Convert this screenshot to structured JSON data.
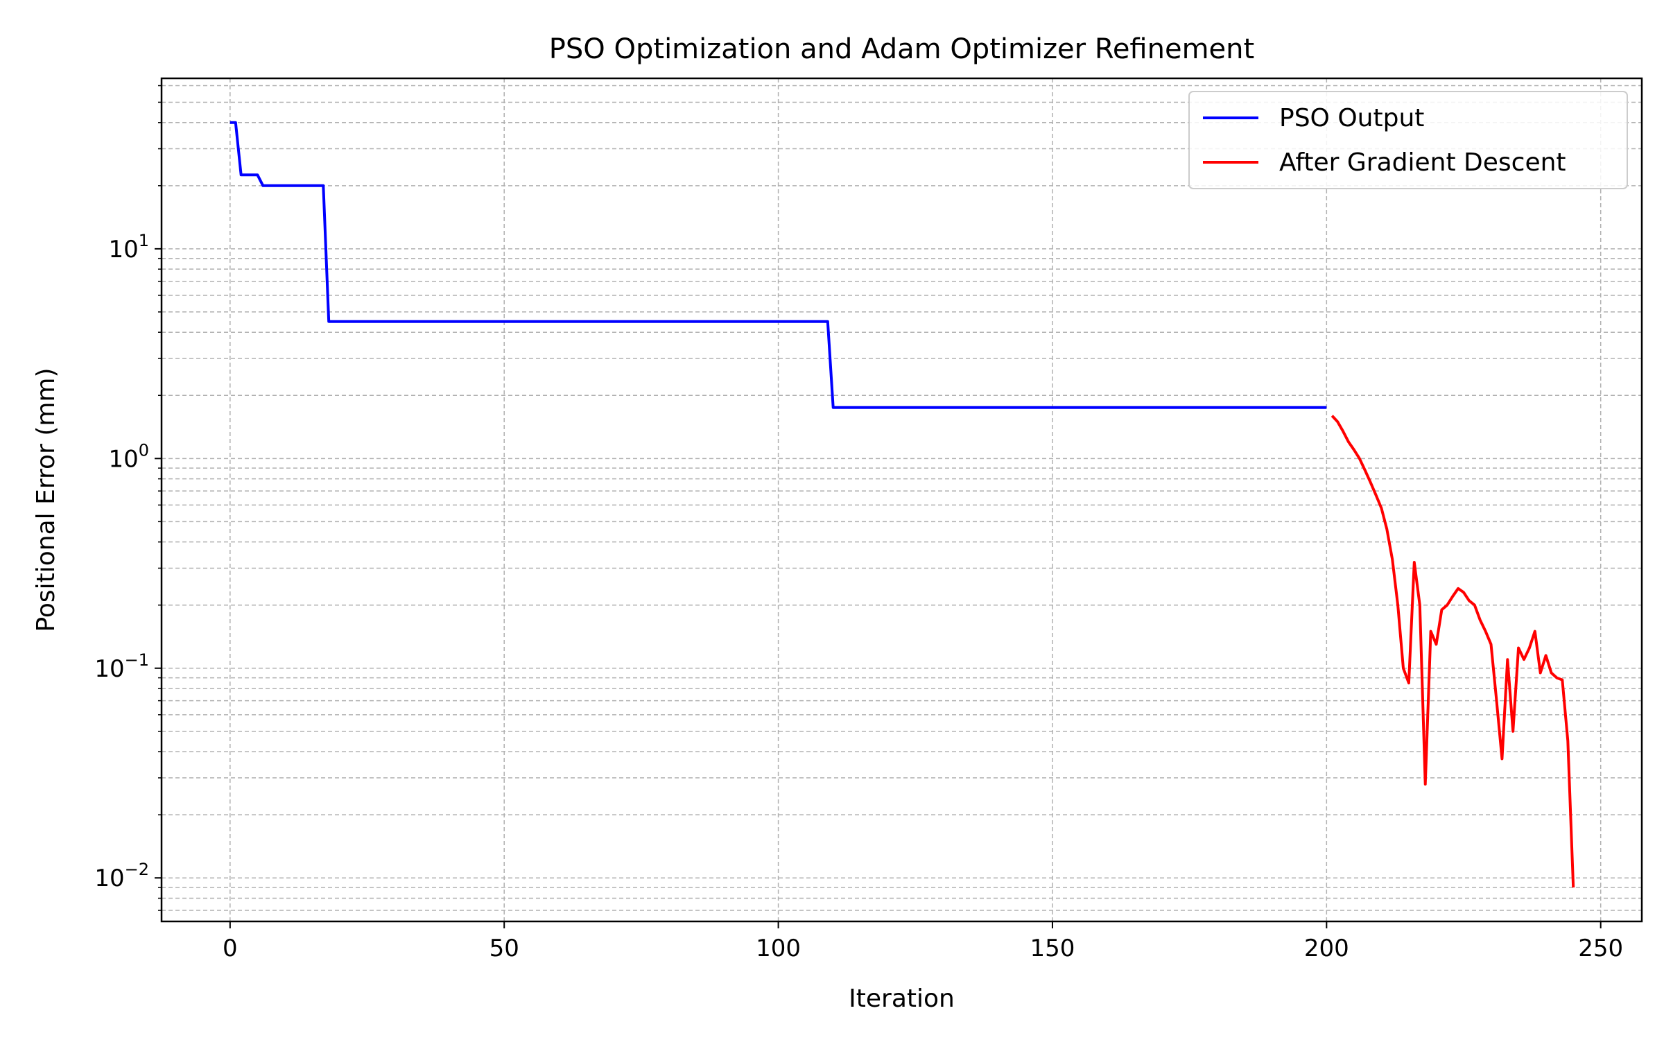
{
  "chart_data": {
    "type": "line",
    "title": "PSO Optimization and Adam Optimizer Refinement",
    "xlabel": "Iteration",
    "ylabel": "Positional Error (mm)",
    "xlim": [
      -12.5,
      257.5
    ],
    "ylim": [
      0.0062,
      65
    ],
    "yscale": "log",
    "grid": true,
    "grid_which": "both",
    "legend_position": "top-right",
    "x_ticks": [
      0,
      50,
      100,
      150,
      200,
      250
    ],
    "x_tick_labels": [
      "0",
      "50",
      "100",
      "150",
      "200",
      "250"
    ],
    "y_ticks": [
      0.01,
      0.1,
      1,
      10
    ],
    "y_tick_labels": [
      {
        "base": "10",
        "exp": "−2"
      },
      {
        "base": "10",
        "exp": "−1"
      },
      {
        "base": "10",
        "exp": "0"
      },
      {
        "base": "10",
        "exp": "1"
      }
    ],
    "series": [
      {
        "name": "PSO Output",
        "color": "#0000ff",
        "x": [
          0,
          1,
          2,
          5,
          6,
          17,
          18,
          109,
          110,
          200
        ],
        "y": [
          40,
          40,
          22.5,
          22.5,
          20,
          20,
          4.5,
          4.5,
          1.75,
          1.75
        ]
      },
      {
        "name": "After Gradient Descent",
        "color": "#ff0000",
        "x": [
          201,
          202,
          203,
          204,
          205,
          206,
          207,
          208,
          209,
          210,
          211,
          212,
          213,
          214,
          215,
          216,
          217,
          218,
          219,
          220,
          221,
          222,
          223,
          224,
          225,
          226,
          227,
          228,
          229,
          230,
          231,
          232,
          233,
          234,
          235,
          236,
          237,
          238,
          239,
          240,
          241,
          242,
          243,
          244,
          245
        ],
        "y": [
          1.6,
          1.5,
          1.35,
          1.2,
          1.1,
          1.0,
          0.88,
          0.77,
          0.67,
          0.58,
          0.46,
          0.33,
          0.2,
          0.1,
          0.085,
          0.32,
          0.2,
          0.028,
          0.15,
          0.13,
          0.19,
          0.2,
          0.22,
          0.24,
          0.23,
          0.21,
          0.2,
          0.17,
          0.15,
          0.13,
          0.07,
          0.037,
          0.11,
          0.05,
          0.125,
          0.11,
          0.125,
          0.15,
          0.095,
          0.115,
          0.095,
          0.09,
          0.088,
          0.045,
          0.009
        ]
      }
    ]
  }
}
